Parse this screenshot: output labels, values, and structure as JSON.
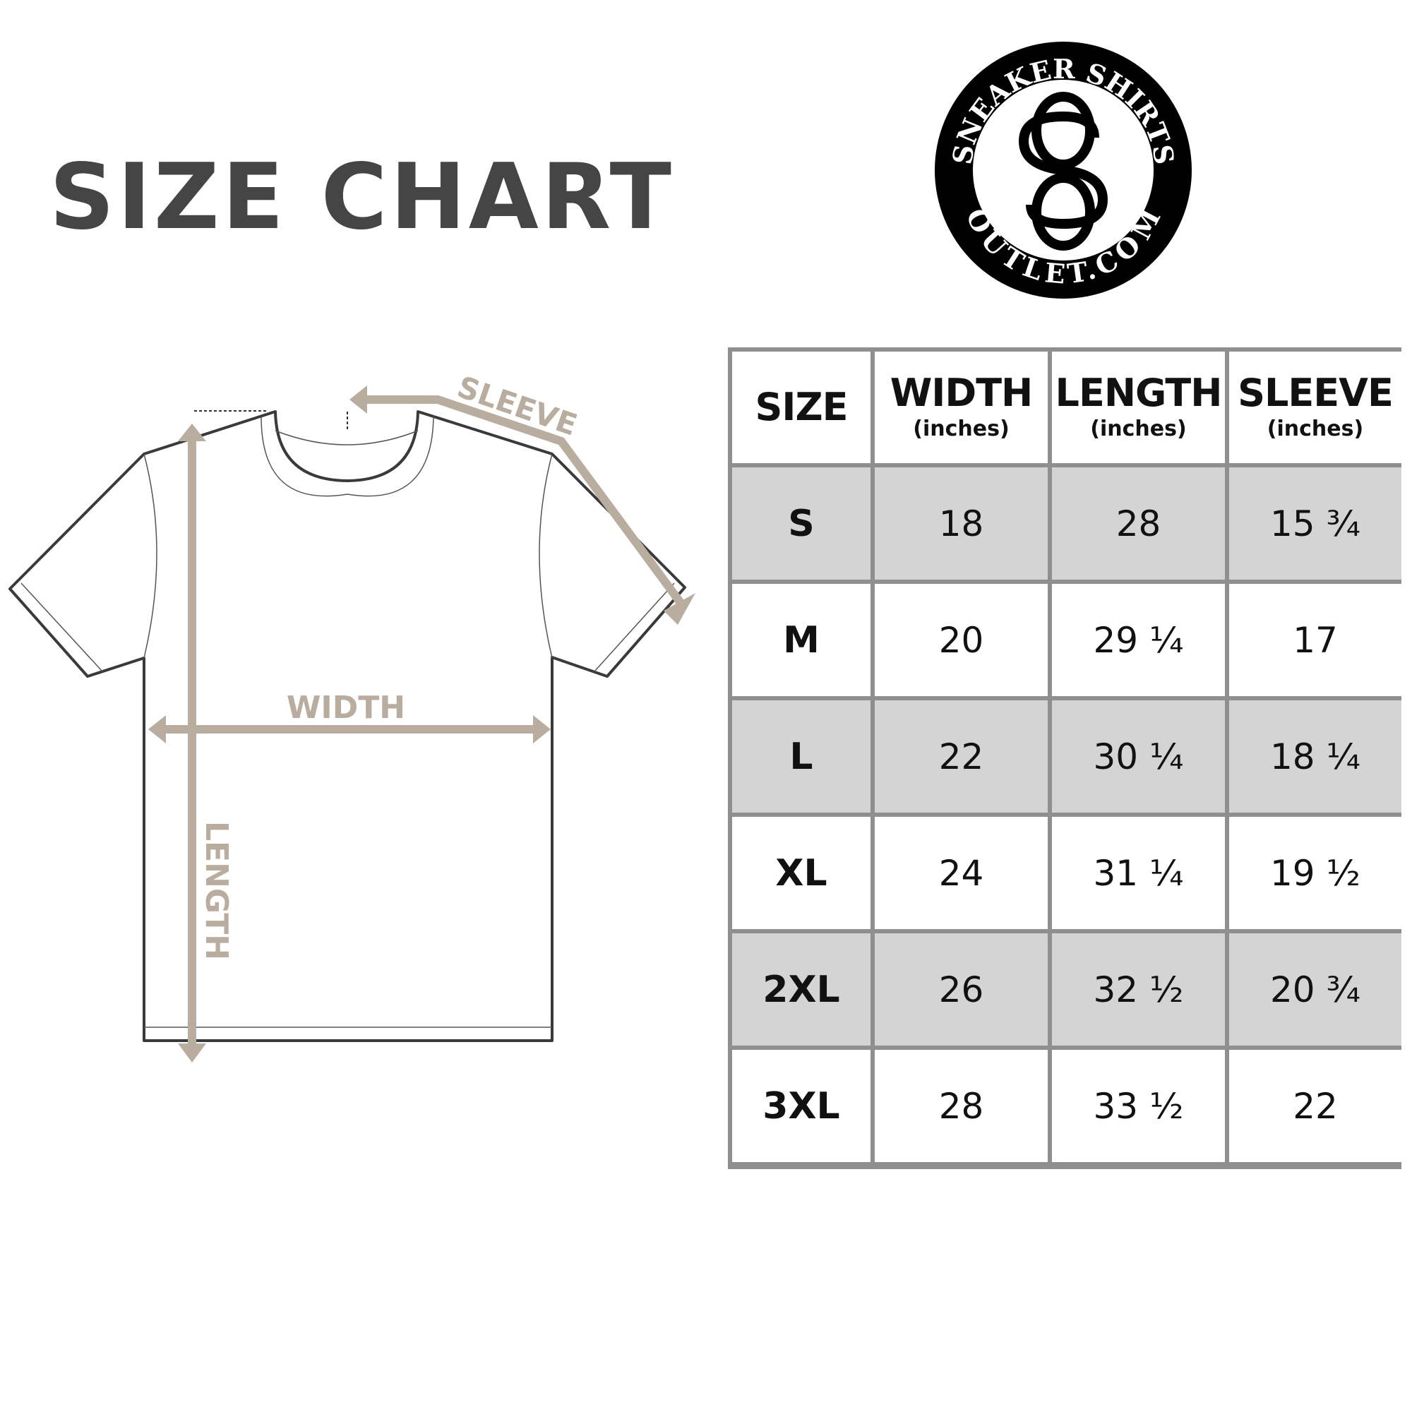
{
  "title": "SIZE CHART",
  "logo": {
    "top_text": "SNEAKER SHIRTS",
    "bottom_text": "OUTLET.COM",
    "monogram": "SO"
  },
  "diagram_labels": {
    "sleeve": "SLEEVE",
    "width": "WIDTH",
    "length": "LENGTH"
  },
  "colors": {
    "title": "#454545",
    "measure": "#b9ad9f",
    "grid": "#8f8f8f",
    "shade": "#d4d4d4"
  },
  "table": {
    "headers": [
      {
        "label": "SIZE",
        "unit": ""
      },
      {
        "label": "WIDTH",
        "unit": "(inches)"
      },
      {
        "label": "LENGTH",
        "unit": "(inches)"
      },
      {
        "label": "SLEEVE",
        "unit": "(inches)"
      }
    ],
    "rows": [
      [
        "S",
        "18",
        "28",
        "15 ¾"
      ],
      [
        "M",
        "20",
        "29 ¼",
        "17"
      ],
      [
        "L",
        "22",
        "30 ¼",
        "18 ¼"
      ],
      [
        "XL",
        "24",
        "31 ¼",
        "19 ½"
      ],
      [
        "2XL",
        "26",
        "32 ½",
        "20 ¾"
      ],
      [
        "3XL",
        "28",
        "33 ½",
        "22"
      ]
    ]
  }
}
